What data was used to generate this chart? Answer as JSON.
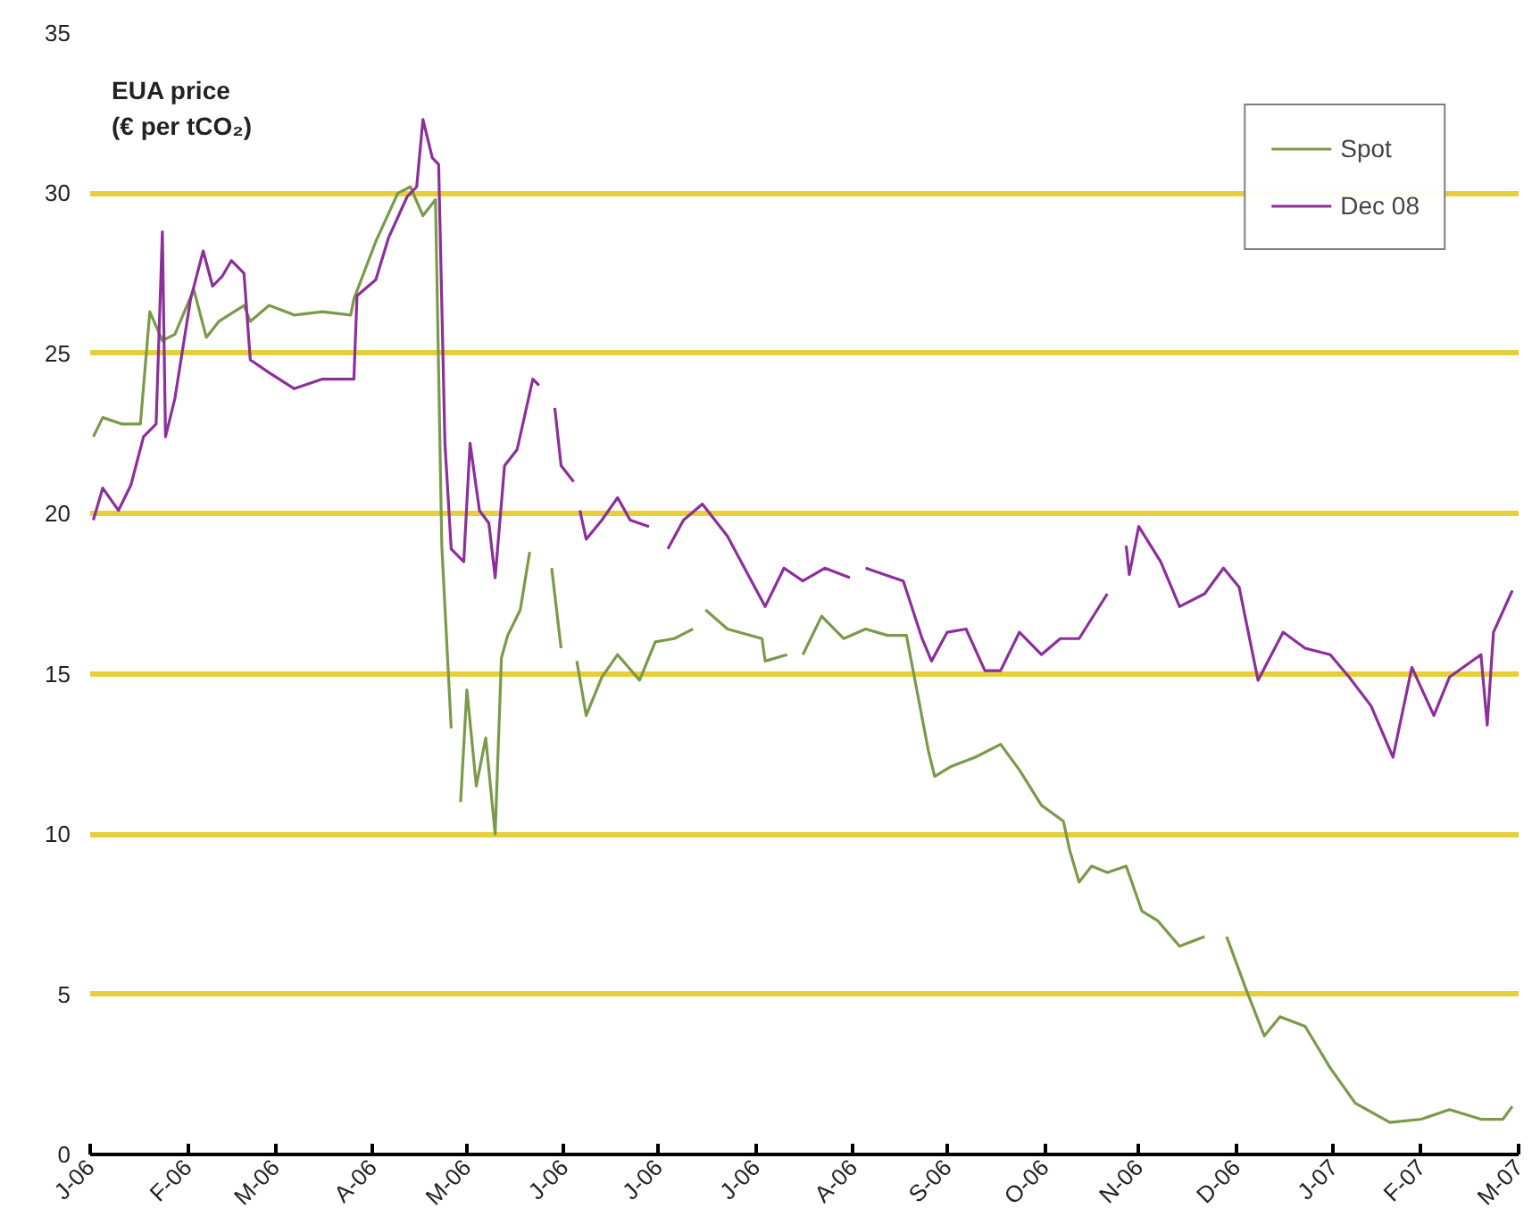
{
  "chart_data": {
    "type": "line",
    "ylabel": "EUA price\n(€ per tCO₂)",
    "xlim": [
      "2006-01-01",
      "2007-04-01"
    ],
    "xticks": [
      {
        "value": "2006-01",
        "label": "J-06"
      },
      {
        "value": "2006-02",
        "label": "F-06"
      },
      {
        "value": "2006-03",
        "label": "M-06"
      },
      {
        "value": "2006-04",
        "label": "A-06"
      },
      {
        "value": "2006-05",
        "label": "M-06"
      },
      {
        "value": "2006-06",
        "label": "J-06"
      },
      {
        "value": "2006-07",
        "label": "J-06"
      },
      {
        "value": "2006-08",
        "label": "J-06"
      },
      {
        "value": "2006-09",
        "label": "A-06"
      },
      {
        "value": "2006-10",
        "label": "S-06"
      },
      {
        "value": "2006-11",
        "label": "O-06"
      },
      {
        "value": "2006-12",
        "label": "N-06"
      },
      {
        "value": "2007-01",
        "label": "D-06"
      },
      {
        "value": "2007-02",
        "label": "J-07"
      },
      {
        "value": "2007-03",
        "label": "F-07"
      },
      {
        "value": "2007-04",
        "label": "M-07"
      }
    ],
    "ylim": [
      0,
      35
    ],
    "yticks": [
      0,
      5,
      10,
      15,
      20,
      25,
      30,
      35
    ],
    "grid": "y",
    "legend": "top right",
    "line_style": "solid",
    "series": [
      {
        "name": "Spot",
        "color": "#7a9a4a",
        "x": [
          "2006-01-02",
          "2006-01-05",
          "2006-01-11",
          "2006-01-17",
          "2006-01-20",
          "2006-01-24",
          "2006-01-28",
          "2006-02-03",
          "2006-02-07",
          "2006-02-11",
          "2006-02-19",
          "2006-02-21",
          "2006-02-27",
          "2006-03-07",
          "2006-03-16",
          "2006-03-25",
          "2006-03-26",
          "2006-04-02",
          "2006-04-09",
          "2006-04-13",
          "2006-04-17",
          "2006-04-21",
          "2006-04-23",
          "2006-04-26",
          null,
          "2006-04-29",
          "2006-05-01",
          "2006-05-04",
          "2006-05-07",
          "2006-05-10",
          "2006-05-12",
          "2006-05-14",
          "2006-05-18",
          "2006-05-21",
          null,
          "2006-05-28",
          "2006-05-31",
          null,
          "2006-06-05",
          "2006-06-08",
          "2006-06-13",
          "2006-06-18",
          "2006-06-25",
          "2006-06-30",
          "2006-07-06",
          "2006-07-12",
          null,
          "2006-07-16",
          "2006-07-23",
          "2006-08-03",
          "2006-08-04",
          "2006-08-11",
          null,
          "2006-08-16",
          "2006-08-22",
          "2006-08-29",
          "2006-09-05",
          "2006-09-12",
          "2006-09-18",
          "2006-09-25",
          "2006-09-27",
          "2006-10-02",
          "2006-10-10",
          "2006-10-18",
          "2006-10-24",
          "2006-10-31",
          "2006-11-07",
          "2006-11-09",
          "2006-11-12",
          "2006-11-16",
          "2006-11-21",
          "2006-11-27",
          "2006-12-02",
          "2006-12-07",
          "2006-12-14",
          "2006-12-22",
          null,
          "2006-12-29",
          "2007-01-04",
          "2007-01-10",
          "2007-01-15",
          "2007-01-23",
          "2007-01-31",
          "2007-02-08",
          "2007-02-19",
          "2007-03-01",
          "2007-03-10",
          "2007-03-20",
          "2007-03-27",
          "2007-03-30"
        ],
        "values": [
          22.4,
          23.0,
          22.8,
          22.8,
          26.3,
          25.4,
          25.6,
          27.0,
          25.5,
          26.0,
          26.5,
          26.0,
          26.5,
          26.2,
          26.3,
          26.2,
          26.7,
          28.5,
          30.0,
          30.2,
          29.3,
          29.8,
          19.0,
          13.3,
          null,
          11.0,
          14.5,
          11.5,
          13.0,
          10.0,
          15.5,
          16.2,
          17.0,
          18.8,
          null,
          18.3,
          15.8,
          null,
          15.4,
          13.7,
          14.9,
          15.6,
          14.8,
          16.0,
          16.1,
          16.4,
          null,
          17.0,
          16.4,
          16.1,
          15.4,
          15.6,
          null,
          15.6,
          16.8,
          16.1,
          16.4,
          16.2,
          16.2,
          12.6,
          11.8,
          12.1,
          12.4,
          12.8,
          12.0,
          10.9,
          10.4,
          9.5,
          8.5,
          9.0,
          8.8,
          9.0,
          7.6,
          7.3,
          6.5,
          6.8,
          null,
          6.8,
          5.2,
          3.7,
          4.3,
          4.0,
          2.7,
          1.6,
          1.0,
          1.1,
          1.4,
          1.1,
          1.1,
          1.5
        ]
      },
      {
        "name": "Dec 08",
        "color": "#8b2f9a",
        "x": [
          "2006-01-02",
          "2006-01-05",
          "2006-01-10",
          "2006-01-14",
          "2006-01-18",
          "2006-01-22",
          "2006-01-24",
          "2006-01-25",
          "2006-01-28",
          "2006-02-02",
          "2006-02-06",
          "2006-02-09",
          "2006-02-12",
          "2006-02-15",
          "2006-02-19",
          "2006-02-21",
          "2006-02-27",
          "2006-03-07",
          "2006-03-16",
          "2006-03-26",
          "2006-03-27",
          "2006-04-02",
          "2006-04-06",
          "2006-04-12",
          "2006-04-15",
          "2006-04-17",
          "2006-04-20",
          "2006-04-22",
          "2006-04-24",
          "2006-04-26",
          "2006-04-30",
          "2006-05-02",
          "2006-05-05",
          "2006-05-08",
          "2006-05-10",
          "2006-05-13",
          "2006-05-17",
          "2006-05-22",
          "2006-05-24",
          null,
          "2006-05-29",
          "2006-05-31",
          "2006-06-04",
          null,
          "2006-06-06",
          "2006-06-08",
          "2006-06-13",
          "2006-06-18",
          "2006-06-22",
          "2006-06-28",
          null,
          "2006-07-04",
          "2006-07-09",
          "2006-07-15",
          "2006-07-23",
          "2006-07-29",
          "2006-08-04",
          "2006-08-10",
          "2006-08-16",
          "2006-08-23",
          "2006-08-31",
          null,
          "2006-09-05",
          "2006-09-17",
          "2006-09-23",
          "2006-09-26",
          "2006-10-01",
          "2006-10-07",
          "2006-10-13",
          "2006-10-18",
          "2006-10-24",
          "2006-10-31",
          "2006-11-06",
          "2006-11-12",
          "2006-11-21",
          null,
          "2006-11-27",
          "2006-11-28",
          "2006-12-01",
          "2006-12-08",
          "2006-12-14",
          "2006-12-22",
          "2006-12-28",
          "2007-01-02",
          "2007-01-08",
          "2007-01-16",
          "2007-01-23",
          "2007-01-31",
          "2007-02-06",
          "2007-02-13",
          "2007-02-20",
          "2007-02-26",
          "2007-03-05",
          "2007-03-10",
          "2007-03-20",
          "2007-03-22",
          "2007-03-24",
          "2007-03-30"
        ],
        "values": [
          19.8,
          20.8,
          20.1,
          20.9,
          22.4,
          22.8,
          28.8,
          22.4,
          23.6,
          26.7,
          28.2,
          27.1,
          27.4,
          27.9,
          27.5,
          24.8,
          24.4,
          23.9,
          24.2,
          24.2,
          26.8,
          27.3,
          28.6,
          29.9,
          30.2,
          32.3,
          31.1,
          30.9,
          22.2,
          18.9,
          18.5,
          22.2,
          20.1,
          19.7,
          18.0,
          21.5,
          22.0,
          24.2,
          24.0,
          null,
          23.3,
          21.5,
          21.0,
          null,
          20.1,
          19.2,
          19.8,
          20.5,
          19.8,
          19.6,
          null,
          18.9,
          19.8,
          20.3,
          19.3,
          18.2,
          17.1,
          18.3,
          17.9,
          18.3,
          18.0,
          null,
          18.3,
          17.9,
          16.1,
          15.4,
          16.3,
          16.4,
          15.1,
          15.1,
          16.3,
          15.6,
          16.1,
          16.1,
          17.5,
          null,
          19.0,
          18.1,
          19.6,
          18.5,
          17.1,
          17.5,
          18.3,
          17.7,
          14.8,
          16.3,
          15.8,
          15.6,
          14.9,
          14.0,
          12.4,
          15.2,
          13.7,
          14.9,
          15.6,
          13.4,
          16.3,
          17.6
        ]
      }
    ]
  }
}
